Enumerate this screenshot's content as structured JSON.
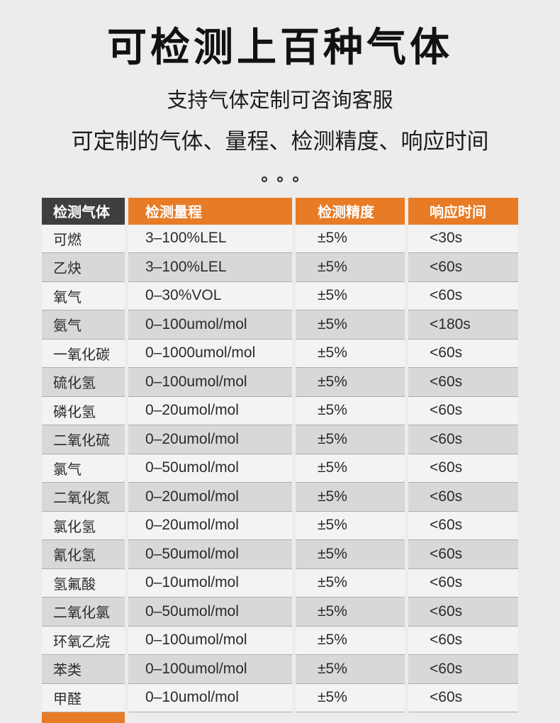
{
  "page": {
    "title": "可检测上百种气体",
    "subtitle1": "支持气体定制可咨询客服",
    "subtitle2": "可定制的气体、量程、检测精度、响应时间"
  },
  "table": {
    "headers": [
      "检测气体",
      "检测量程",
      "检测精度",
      "响应时间"
    ],
    "rows": [
      [
        "可燃",
        "3–100%LEL",
        "±5%",
        "<30s"
      ],
      [
        "乙炔",
        "3–100%LEL",
        "±5%",
        "<60s"
      ],
      [
        "氧气",
        "0–30%VOL",
        "±5%",
        "<60s"
      ],
      [
        "氨气",
        "0–100umol/mol",
        "±5%",
        "<180s"
      ],
      [
        "一氧化碳",
        "0–1000umol/mol",
        "±5%",
        "<60s"
      ],
      [
        "硫化氢",
        "0–100umol/mol",
        "±5%",
        "<60s"
      ],
      [
        "磷化氢",
        "0–20umol/mol",
        "±5%",
        "<60s"
      ],
      [
        "二氧化硫",
        "0–20umol/mol",
        "±5%",
        "<60s"
      ],
      [
        "氯气",
        "0–50umol/mol",
        "±5%",
        "<60s"
      ],
      [
        "二氧化氮",
        "0–20umol/mol",
        "±5%",
        "<60s"
      ],
      [
        "氯化氢",
        "0–20umol/mol",
        "±5%",
        "<60s"
      ],
      [
        "氰化氢",
        "0–50umol/mol",
        "±5%",
        "<60s"
      ],
      [
        "氢氟酸",
        "0–10umol/mol",
        "±5%",
        "<60s"
      ],
      [
        "二氧化氯",
        "0–50umol/mol",
        "±5%",
        "<60s"
      ],
      [
        "环氧乙烷",
        "0–100umol/mol",
        "±5%",
        "<60s"
      ],
      [
        "苯类",
        "0–100umol/mol",
        "±5%",
        "<60s"
      ],
      [
        "甲醛",
        "0–10umol/mol",
        "±5%",
        "<60s"
      ]
    ]
  },
  "colors": {
    "accent_orange": "#e87b25",
    "header_dark": "#3e3e3e",
    "row_light": "#f3f3f3",
    "row_dark": "#d8d8d8",
    "page_bg": "#ececec",
    "divider": "#aeaeae",
    "text_dark": "#1a1a1a"
  }
}
